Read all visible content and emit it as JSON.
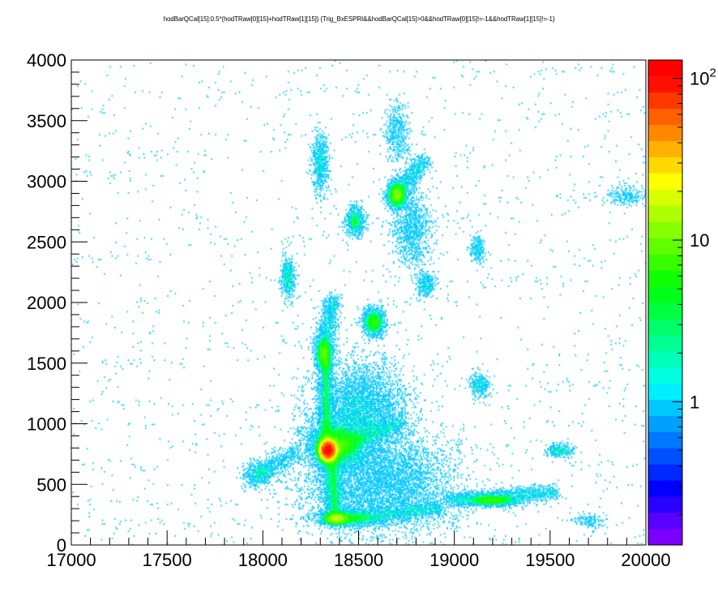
{
  "chart_data": {
    "type": "heatmap",
    "title": "hodBarQCal[15]:0.5*(hodTRaw[0][15]+hodTRaw[1][15]) {Trig_BxESPRI&&hodBarQCal[15]>0&&hodTRaw[0][15]!=-1&&hodTRaw[1][15]!=-1}",
    "xlabel": "",
    "ylabel": "",
    "xlim": [
      17000,
      20000
    ],
    "ylim": [
      0,
      4000
    ],
    "x_ticks": [
      "17000",
      "17500",
      "18000",
      "18500",
      "19000",
      "19500",
      "20000"
    ],
    "x_tick_values": [
      17000,
      17500,
      18000,
      18500,
      19000,
      19500,
      20000
    ],
    "y_ticks": [
      "0",
      "500",
      "1000",
      "1500",
      "2000",
      "2500",
      "3000",
      "3500",
      "4000"
    ],
    "y_tick_values": [
      0,
      500,
      1000,
      1500,
      2000,
      2500,
      3000,
      3500,
      4000
    ],
    "z_scale": "log",
    "zlim": [
      0.13,
      130
    ],
    "z_ticks": [
      {
        "value": 1,
        "base": "1",
        "exp": ""
      },
      {
        "value": 10,
        "base": "10",
        "exp": ""
      },
      {
        "value": 100,
        "base": "10",
        "exp": "2"
      }
    ],
    "palette": [
      "#7b00ff",
      "#5a00ff",
      "#2a00ff",
      "#0000ff",
      "#0028ff",
      "#0050ff",
      "#0078ff",
      "#00a0ff",
      "#00c8ff",
      "#00f0ff",
      "#00ffe0",
      "#00ffb8",
      "#00ff90",
      "#00ff68",
      "#00ff40",
      "#00ff18",
      "#10ff00",
      "#38ff00",
      "#60ff00",
      "#88ff00",
      "#b0ff00",
      "#d8ff00",
      "#ffff00",
      "#ffd800",
      "#ffb000",
      "#ff8800",
      "#ff6000",
      "#ff3800",
      "#ff1000",
      "#ff0000"
    ],
    "grid": false,
    "legend": "colorbar-right",
    "clusters": [
      {
        "x": 18340,
        "y": 785,
        "sx": 22,
        "sy": 42,
        "peak": 130
      },
      {
        "x": 18390,
        "y": 830,
        "sx": 70,
        "sy": 90,
        "peak": 6
      },
      {
        "x": 18320,
        "y": 1580,
        "sx": 22,
        "sy": 65,
        "peak": 9
      },
      {
        "x": 18580,
        "y": 1840,
        "sx": 28,
        "sy": 55,
        "peak": 7
      },
      {
        "x": 18700,
        "y": 2890,
        "sx": 25,
        "sy": 55,
        "peak": 10
      },
      {
        "x": 18480,
        "y": 2670,
        "sx": 25,
        "sy": 60,
        "peak": 4
      },
      {
        "x": 18130,
        "y": 2210,
        "sx": 18,
        "sy": 80,
        "peak": 3
      },
      {
        "x": 18380,
        "y": 220,
        "sx": 35,
        "sy": 25,
        "peak": 12
      },
      {
        "x": 18450,
        "y": 220,
        "sx": 90,
        "sy": 30,
        "peak": 3
      },
      {
        "x": 19200,
        "y": 370,
        "sx": 70,
        "sy": 25,
        "peak": 6
      },
      {
        "x": 19550,
        "y": 780,
        "sx": 35,
        "sy": 25,
        "peak": 3
      },
      {
        "x": 18300,
        "y": 3150,
        "sx": 20,
        "sy": 120,
        "peak": 2
      },
      {
        "x": 18850,
        "y": 2150,
        "sx": 25,
        "sy": 50,
        "peak": 2
      },
      {
        "x": 19130,
        "y": 1320,
        "sx": 25,
        "sy": 50,
        "peak": 2
      },
      {
        "x": 19120,
        "y": 2450,
        "sx": 20,
        "sy": 60,
        "peak": 1.5
      },
      {
        "x": 17990,
        "y": 600,
        "sx": 35,
        "sy": 50,
        "peak": 2
      },
      {
        "x": 18700,
        "y": 3400,
        "sx": 30,
        "sy": 120,
        "peak": 1
      },
      {
        "x": 18780,
        "y": 2600,
        "sx": 50,
        "sy": 150,
        "peak": 1
      },
      {
        "x": 18500,
        "y": 1100,
        "sx": 120,
        "sy": 200,
        "peak": 1.5
      },
      {
        "x": 18600,
        "y": 500,
        "sx": 200,
        "sy": 200,
        "peak": 1
      },
      {
        "x": 19700,
        "y": 200,
        "sx": 40,
        "sy": 30,
        "peak": 1
      },
      {
        "x": 19900,
        "y": 2880,
        "sx": 50,
        "sy": 40,
        "peak": 1
      }
    ],
    "ridges": [
      {
        "x0": 18330,
        "y0": 900,
        "x1": 18330,
        "y1": 1500,
        "sx": 18,
        "peak": 3
      },
      {
        "x0": 18360,
        "y0": 700,
        "x1": 18380,
        "y1": 220,
        "sx": 25,
        "peak": 3
      },
      {
        "x0": 18360,
        "y0": 2000,
        "x1": 18320,
        "y1": 1650,
        "sx": 25,
        "peak": 1.5
      },
      {
        "x0": 18380,
        "y0": 800,
        "x1": 18700,
        "y1": 1000,
        "sx": 30,
        "peak": 1.5
      },
      {
        "x0": 18400,
        "y0": 220,
        "x1": 18900,
        "y1": 300,
        "sx": 25,
        "peak": 1.5
      },
      {
        "x0": 19000,
        "y0": 380,
        "x1": 19500,
        "y1": 430,
        "sx": 25,
        "peak": 1.5
      },
      {
        "x0": 18700,
        "y0": 2880,
        "x1": 18830,
        "y1": 3150,
        "sx": 25,
        "peak": 1.5
      },
      {
        "x0": 18150,
        "y0": 750,
        "x1": 17950,
        "y1": 550,
        "sx": 30,
        "peak": 1
      }
    ],
    "bins": {
      "nx": 600,
      "ny": 400
    }
  }
}
